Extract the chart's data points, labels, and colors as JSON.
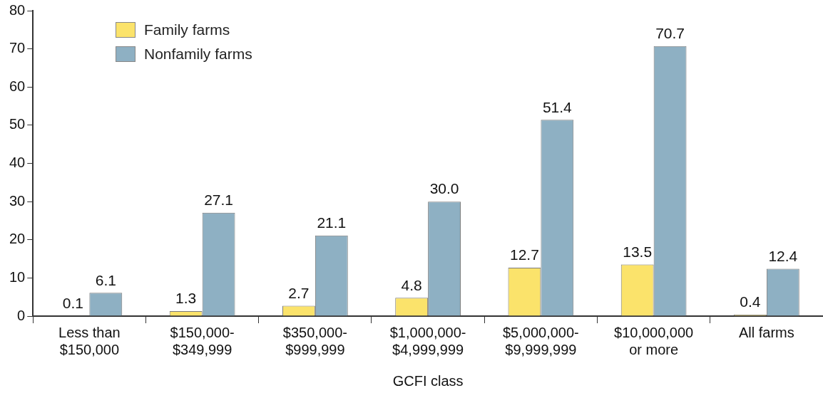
{
  "chart_data": {
    "type": "bar",
    "xlabel": "GCFI class",
    "categories": [
      "Less than\n$150,000",
      "$150,000-\n$349,999",
      "$350,000-\n$999,999",
      "$1,000,000-\n$4,999,999",
      "$5,000,000-\n$9,999,999",
      "$10,000,000\nor more",
      "All farms"
    ],
    "series": [
      {
        "name": "Family farms",
        "color": "#fbe36b",
        "values": [
          0.1,
          1.3,
          2.7,
          4.8,
          12.7,
          13.5,
          0.4
        ],
        "value_labels": [
          "0.1",
          "1.3",
          "2.7",
          "4.8",
          "12.7",
          "13.5",
          "0.4"
        ]
      },
      {
        "name": "Nonfamily farms",
        "color": "#8eb0c3",
        "values": [
          6.1,
          27.1,
          21.1,
          30.0,
          51.4,
          70.7,
          12.4
        ],
        "value_labels": [
          "6.1",
          "27.1",
          "21.1",
          "30.0",
          "51.4",
          "70.7",
          "12.4"
        ]
      }
    ],
    "ylim": [
      0,
      80
    ],
    "yticks": [
      0,
      10,
      20,
      30,
      40,
      50,
      60,
      70,
      80
    ],
    "grid": false,
    "legend": "top left"
  }
}
